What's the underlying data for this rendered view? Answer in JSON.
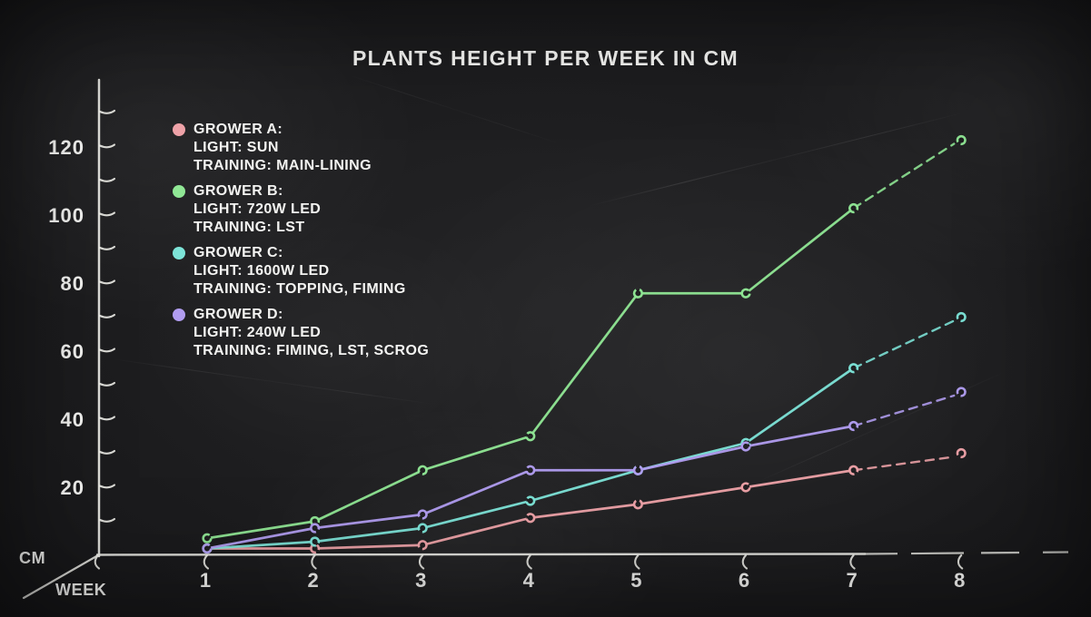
{
  "title": "PLANTS HEIGHT PER WEEK IN CM",
  "axis_units": {
    "y": "CM",
    "x": "WEEK"
  },
  "chart_data": {
    "type": "line",
    "title": "PLANTS HEIGHT PER WEEK IN CM",
    "xlabel": "WEEK",
    "ylabel": "CM",
    "x": [
      1,
      2,
      3,
      4,
      5,
      6,
      7,
      8
    ],
    "xlim": [
      0,
      8.8
    ],
    "ylim": [
      0,
      133
    ],
    "ytick_step": 10,
    "ytick_max": 130,
    "ytick_labels": [
      20,
      40,
      60,
      80,
      100,
      120
    ],
    "grid": false,
    "legend_position": "upper-left",
    "style": {
      "background_color": "#1d1d1f",
      "chalk_color": "#efefea",
      "text_color": "#f3f3f1",
      "marker": "open-circle",
      "final_segment": "dashed"
    },
    "series": [
      {
        "name": "GROWER A:",
        "light_label": "LIGHT: SUN",
        "training_label": "TRAINING: MAIN-LINING",
        "color": "#efa3a9",
        "values": [
          2,
          2,
          3,
          11,
          15,
          20,
          25,
          30
        ]
      },
      {
        "name": "GROWER B:",
        "light_label": "LIGHT: 720W LED",
        "training_label": "TRAINING: LST",
        "color": "#90e795",
        "values": [
          5,
          10,
          25,
          35,
          77,
          77,
          102,
          122
        ]
      },
      {
        "name": "GROWER C:",
        "light_label": "LIGHT: 1600W LED",
        "training_label": "TRAINING: TOPPING, FIMING",
        "color": "#7de4d8",
        "values": [
          2,
          4,
          8,
          16,
          25,
          33,
          55,
          70
        ]
      },
      {
        "name": "GROWER D:",
        "light_label": "LIGHT: 240W LED",
        "training_label": "TRAINING: FIMING, LST, SCROG",
        "color": "#b19df0",
        "values": [
          2,
          8,
          12,
          25,
          25,
          32,
          38,
          48
        ]
      }
    ]
  }
}
